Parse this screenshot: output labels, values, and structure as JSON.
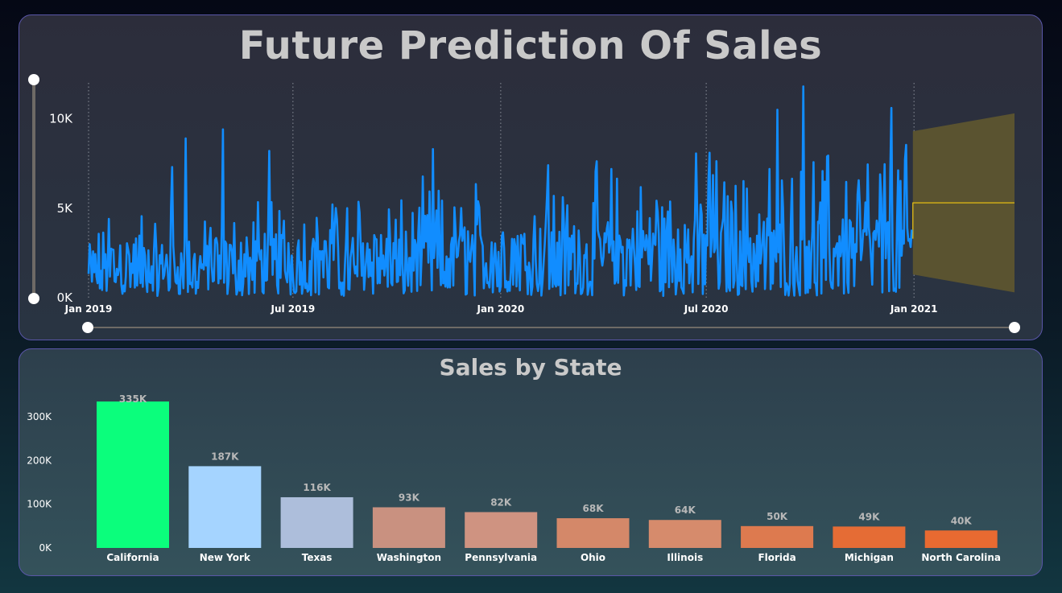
{
  "forecast_panel": {
    "title": "Future Prediction Of Sales"
  },
  "state_panel": {
    "title": "Sales by State"
  },
  "colors": {
    "line": "#118dff",
    "forecast_band": "#5a5330",
    "forecast_line": "#f2c811",
    "california": "#0bfe7c",
    "new_york": "#a5d4ff",
    "texas": "#adbedb"
  },
  "chart_data": [
    {
      "type": "line",
      "title": "Future Prediction Of Sales",
      "x_tick_labels": [
        "Jan 2019",
        "Jul 2019",
        "Jan 2020",
        "Jul 2020",
        "Jan 2021"
      ],
      "y_tick_labels": [
        "0K",
        "5K",
        "10K"
      ],
      "ylim": [
        0,
        12000
      ],
      "x_range": [
        "2019-01-01",
        "2021-03-31"
      ],
      "grid": "vertical dotted",
      "series": [
        {
          "x_start": "2019-01-01",
          "x_end": "2020-12-30",
          "frequency": "daily",
          "approx_mean": 2300,
          "peaks": [
            {
              "x": "2019-03-16",
              "y": 7300
            },
            {
              "x": "2019-03-28",
              "y": 8900
            },
            {
              "x": "2019-04-30",
              "y": 9400
            },
            {
              "x": "2019-06-10",
              "y": 8200
            },
            {
              "x": "2019-11-02",
              "y": 8300
            },
            {
              "x": "2020-02-12",
              "y": 7400
            },
            {
              "x": "2020-07-04",
              "y": 8100
            },
            {
              "x": "2020-09-02",
              "y": 10500
            },
            {
              "x": "2020-09-25",
              "y": 11800
            },
            {
              "x": "2020-12-12",
              "y": 10600
            }
          ]
        }
      ],
      "forecast": {
        "x_start": "2020-12-31",
        "x_end": "2021-03-31",
        "value": 5300,
        "upper": [
          9300,
          10300
        ],
        "lower": [
          1300,
          300
        ]
      }
    },
    {
      "type": "bar",
      "title": "Sales by State",
      "categories": [
        "California",
        "New York",
        "Texas",
        "Washington",
        "Pennsylvania",
        "Ohio",
        "Illinois",
        "Florida",
        "Michigan",
        "North Carolina"
      ],
      "values": [
        335000,
        187000,
        116000,
        93000,
        82000,
        68000,
        64000,
        50000,
        49000,
        40000
      ],
      "data_labels": [
        "335K",
        "187K",
        "116K",
        "93K",
        "82K",
        "68K",
        "64K",
        "50K",
        "49K",
        "40K"
      ],
      "bar_colors": [
        "#0bfe7c",
        "#a5d4ff",
        "#adbedb",
        "#c99180",
        "#cf9381",
        "#d48869",
        "#d68b6c",
        "#dd7a4f",
        "#e56c35",
        "#e86a31"
      ],
      "y_tick_labels": [
        "0K",
        "100K",
        "200K",
        "300K"
      ],
      "ylim": [
        0,
        340000
      ]
    }
  ]
}
